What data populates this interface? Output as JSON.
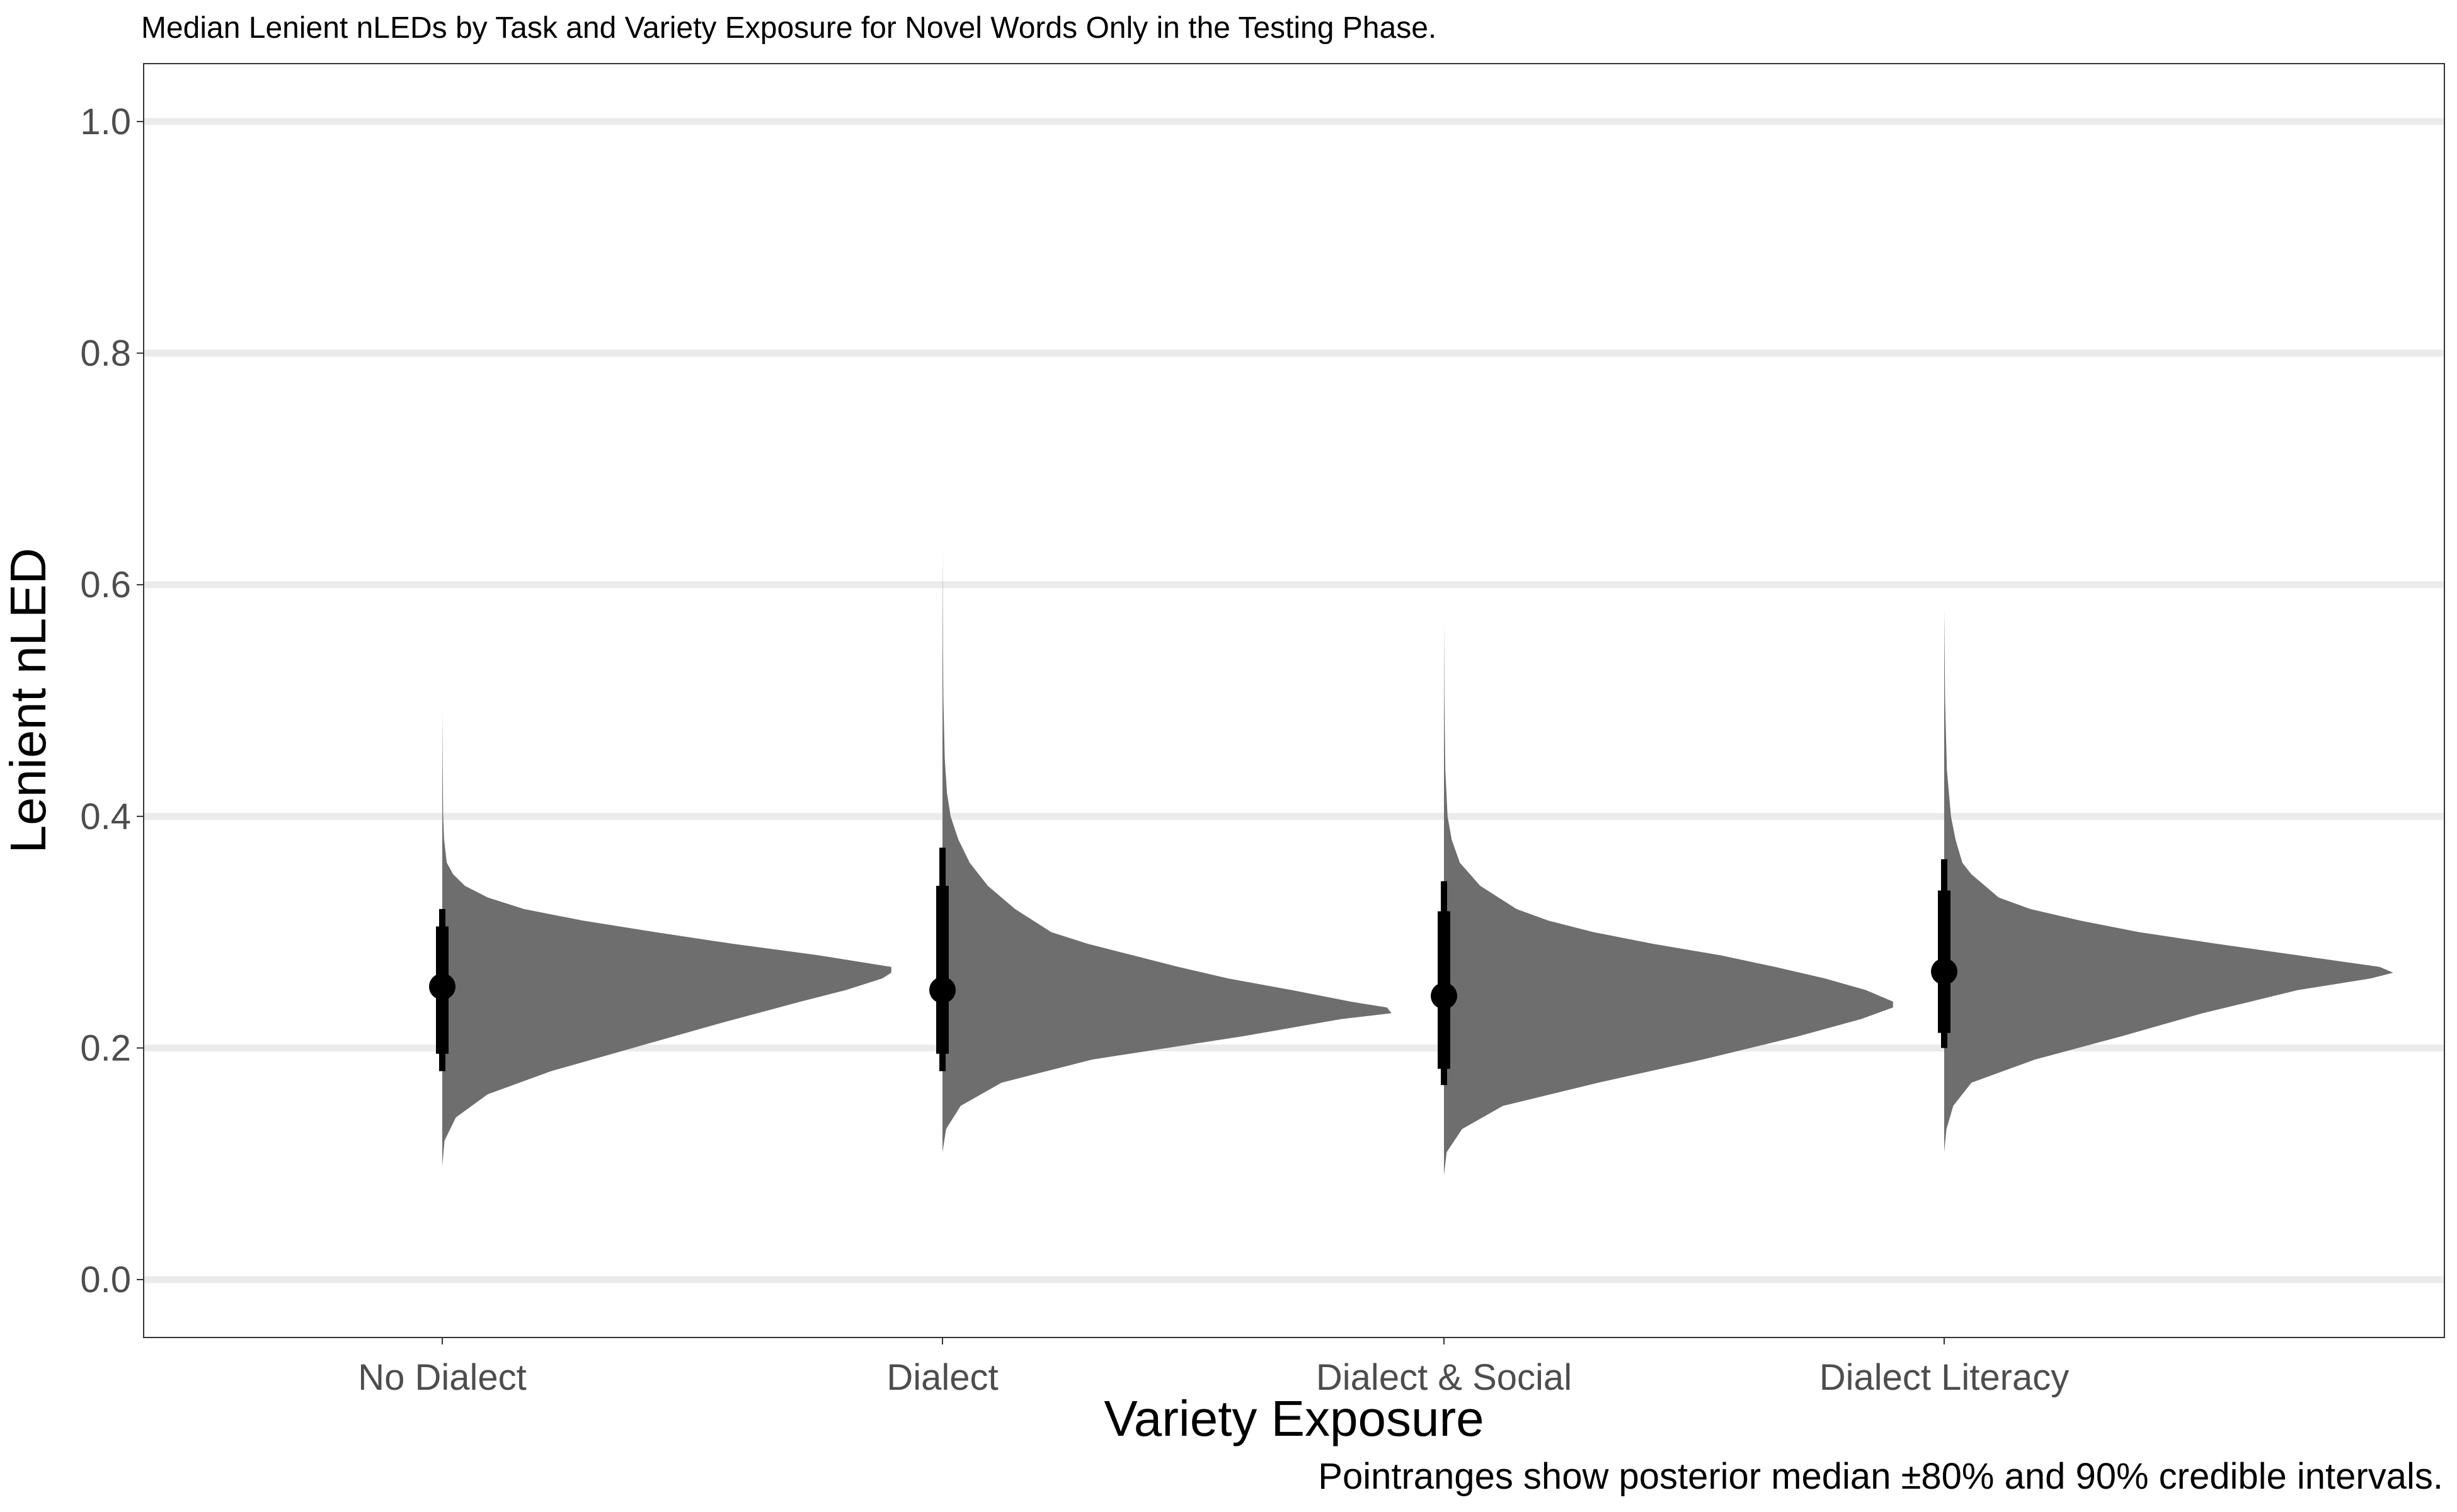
{
  "chart_data": {
    "type": "halfeye",
    "title": "Median Lenient nLEDs by Task and Variety Exposure for Novel Words Only in the Testing Phase.",
    "xlabel": "Variety Exposure",
    "ylabel": "Lenient nLED",
    "caption": "Pointranges show posterior median ±80% and 90% credible intervals.",
    "ylim": [
      -0.05,
      1.05
    ],
    "yticks": [
      0.0,
      0.2,
      0.4,
      0.6,
      0.8,
      1.0
    ],
    "ytick_labels": [
      "0.0",
      "0.2",
      "0.4",
      "0.6",
      "0.8",
      "1.0"
    ],
    "grid": "horizontal",
    "categories": [
      "No Dialect",
      "Dialect",
      "Dialect & Social",
      "Dialect Literacy"
    ],
    "point_color": "#000000",
    "density_color": "#6e6e6e",
    "series": [
      {
        "category": "No Dialect",
        "median": 0.253,
        "ci80": [
          0.195,
          0.305
        ],
        "ci90": [
          0.18,
          0.32
        ],
        "density": [
          [
            0.098,
            0.0
          ],
          [
            0.12,
            0.005
          ],
          [
            0.14,
            0.03
          ],
          [
            0.16,
            0.1
          ],
          [
            0.18,
            0.24
          ],
          [
            0.2,
            0.42
          ],
          [
            0.22,
            0.6
          ],
          [
            0.24,
            0.79
          ],
          [
            0.25,
            0.89
          ],
          [
            0.26,
            0.97
          ],
          [
            0.265,
            0.99
          ],
          [
            0.27,
            0.99
          ],
          [
            0.28,
            0.83
          ],
          [
            0.29,
            0.64
          ],
          [
            0.3,
            0.47
          ],
          [
            0.31,
            0.31
          ],
          [
            0.32,
            0.18
          ],
          [
            0.33,
            0.1
          ],
          [
            0.34,
            0.05
          ],
          [
            0.35,
            0.024
          ],
          [
            0.36,
            0.01
          ],
          [
            0.38,
            0.004
          ],
          [
            0.4,
            0.002
          ],
          [
            0.44,
            0.001
          ],
          [
            0.49,
            0.0
          ]
        ]
      },
      {
        "category": "Dialect",
        "median": 0.25,
        "ci80": [
          0.195,
          0.34
        ],
        "ci90": [
          0.18,
          0.373
        ],
        "density": [
          [
            0.11,
            0.0
          ],
          [
            0.13,
            0.008
          ],
          [
            0.15,
            0.04
          ],
          [
            0.17,
            0.13
          ],
          [
            0.19,
            0.33
          ],
          [
            0.21,
            0.66
          ],
          [
            0.225,
            0.88
          ],
          [
            0.23,
            0.99
          ],
          [
            0.235,
            0.98
          ],
          [
            0.24,
            0.9
          ],
          [
            0.25,
            0.77
          ],
          [
            0.26,
            0.63
          ],
          [
            0.27,
            0.52
          ],
          [
            0.28,
            0.42
          ],
          [
            0.29,
            0.32
          ],
          [
            0.3,
            0.24
          ],
          [
            0.32,
            0.16
          ],
          [
            0.34,
            0.1
          ],
          [
            0.36,
            0.06
          ],
          [
            0.38,
            0.035
          ],
          [
            0.4,
            0.018
          ],
          [
            0.42,
            0.01
          ],
          [
            0.45,
            0.005
          ],
          [
            0.5,
            0.002
          ],
          [
            0.55,
            0.001
          ],
          [
            0.63,
            0.0
          ]
        ]
      },
      {
        "category": "Dialect & Social",
        "median": 0.245,
        "ci80": [
          0.182,
          0.318
        ],
        "ci90": [
          0.168,
          0.344
        ],
        "density": [
          [
            0.09,
            0.0
          ],
          [
            0.11,
            0.006
          ],
          [
            0.13,
            0.04
          ],
          [
            0.15,
            0.13
          ],
          [
            0.17,
            0.34
          ],
          [
            0.19,
            0.57
          ],
          [
            0.21,
            0.78
          ],
          [
            0.225,
            0.92
          ],
          [
            0.235,
            0.99
          ],
          [
            0.24,
            0.99
          ],
          [
            0.25,
            0.93
          ],
          [
            0.26,
            0.84
          ],
          [
            0.27,
            0.73
          ],
          [
            0.28,
            0.61
          ],
          [
            0.29,
            0.46
          ],
          [
            0.3,
            0.33
          ],
          [
            0.31,
            0.23
          ],
          [
            0.32,
            0.16
          ],
          [
            0.34,
            0.08
          ],
          [
            0.36,
            0.035
          ],
          [
            0.38,
            0.017
          ],
          [
            0.4,
            0.008
          ],
          [
            0.44,
            0.003
          ],
          [
            0.5,
            0.001
          ],
          [
            0.57,
            0.0
          ]
        ]
      },
      {
        "category": "Dialect Literacy",
        "median": 0.266,
        "ci80": [
          0.213,
          0.336
        ],
        "ci90": [
          0.2,
          0.363
        ],
        "density": [
          [
            0.11,
            0.0
          ],
          [
            0.13,
            0.005
          ],
          [
            0.15,
            0.02
          ],
          [
            0.17,
            0.06
          ],
          [
            0.19,
            0.2
          ],
          [
            0.21,
            0.39
          ],
          [
            0.23,
            0.57
          ],
          [
            0.25,
            0.78
          ],
          [
            0.255,
            0.86
          ],
          [
            0.26,
            0.94
          ],
          [
            0.265,
            0.99
          ],
          [
            0.27,
            0.96
          ],
          [
            0.28,
            0.78
          ],
          [
            0.29,
            0.6
          ],
          [
            0.3,
            0.43
          ],
          [
            0.31,
            0.3
          ],
          [
            0.32,
            0.19
          ],
          [
            0.33,
            0.12
          ],
          [
            0.34,
            0.09
          ],
          [
            0.35,
            0.06
          ],
          [
            0.36,
            0.04
          ],
          [
            0.38,
            0.025
          ],
          [
            0.4,
            0.015
          ],
          [
            0.44,
            0.006
          ],
          [
            0.5,
            0.002
          ],
          [
            0.58,
            0.0
          ]
        ]
      }
    ]
  }
}
